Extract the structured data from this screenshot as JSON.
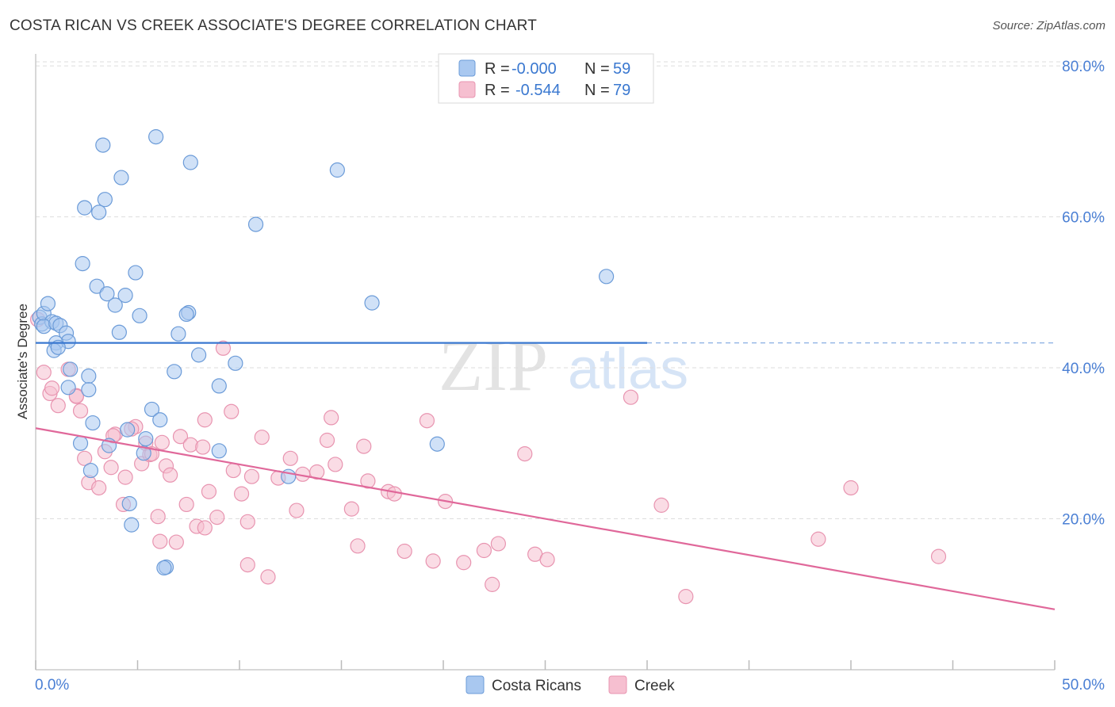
{
  "header": {
    "title": "COSTA RICAN VS CREEK ASSOCIATE'S DEGREE CORRELATION CHART",
    "source": "Source: ZipAtlas.com"
  },
  "watermark": {
    "zip": "ZIP",
    "atlas": "atlas"
  },
  "colors": {
    "blue_fill": "#a9c8f0",
    "blue_stroke": "#6b9bd8",
    "blue_line": "#3a78d0",
    "pink_fill": "#f6bfd0",
    "pink_stroke": "#e894b0",
    "pink_line": "#e0689a",
    "grid": "#dddddd",
    "value_text": "#3a78d0",
    "label_text": "#333333"
  },
  "stats": [
    {
      "r_label": "R =",
      "r_value": "-0.000",
      "n_label": "N =",
      "n_value": "59"
    },
    {
      "r_label": "R =",
      "r_value": "-0.544",
      "n_label": "N =",
      "n_value": "79"
    }
  ],
  "chart_data": {
    "type": "scatter",
    "title": "COSTA RICAN VS CREEK ASSOCIATE'S DEGREE CORRELATION CHART",
    "xlabel": "",
    "ylabel": "Associate's Degree",
    "xlim": [
      0,
      50
    ],
    "ylim": [
      0,
      84
    ],
    "x_tick_labels": [
      "0.0%",
      "50.0%"
    ],
    "y_ticks": [
      20,
      40,
      60,
      80
    ],
    "y_tick_labels": [
      "20.0%",
      "40.0%",
      "60.0%",
      "80.0%"
    ],
    "legend": [
      "Costa Ricans",
      "Creek"
    ],
    "series": [
      {
        "name": "Costa Ricans",
        "r": -0.0,
        "n": 59,
        "trend": {
          "x0": 0,
          "y0": 43.3,
          "x1": 30,
          "y1": 43.3,
          "dashed_to": 50
        },
        "points": [
          [
            0.2,
            46.7
          ],
          [
            0.3,
            45.8
          ],
          [
            0.4,
            47.2
          ],
          [
            0.6,
            48.5
          ],
          [
            0.8,
            46.1
          ],
          [
            0.4,
            45.5
          ],
          [
            1.0,
            45.9
          ],
          [
            1.2,
            45.6
          ],
          [
            1.5,
            44.6
          ],
          [
            1.6,
            43.5
          ],
          [
            1.0,
            43.3
          ],
          [
            0.9,
            42.3
          ],
          [
            1.1,
            42.7
          ],
          [
            1.7,
            39.8
          ],
          [
            2.6,
            38.9
          ],
          [
            1.6,
            37.4
          ],
          [
            2.6,
            37.1
          ],
          [
            2.2,
            30.0
          ],
          [
            2.8,
            32.7
          ],
          [
            2.7,
            26.4
          ],
          [
            3.6,
            29.7
          ],
          [
            4.5,
            31.8
          ],
          [
            5.4,
            30.6
          ],
          [
            5.3,
            28.7
          ],
          [
            5.7,
            34.5
          ],
          [
            6.1,
            33.1
          ],
          [
            4.6,
            22.0
          ],
          [
            4.7,
            19.2
          ],
          [
            6.4,
            13.6
          ],
          [
            6.3,
            13.5
          ],
          [
            2.3,
            53.8
          ],
          [
            3.0,
            50.8
          ],
          [
            3.5,
            49.8
          ],
          [
            3.9,
            48.3
          ],
          [
            4.4,
            49.6
          ],
          [
            4.9,
            52.6
          ],
          [
            5.1,
            46.9
          ],
          [
            4.1,
            44.7
          ],
          [
            7.0,
            44.5
          ],
          [
            8.0,
            41.7
          ],
          [
            6.8,
            39.5
          ],
          [
            7.5,
            47.3
          ],
          [
            7.4,
            47.1
          ],
          [
            9.0,
            37.6
          ],
          [
            9.8,
            40.6
          ],
          [
            9.0,
            29.0
          ],
          [
            12.4,
            25.6
          ],
          [
            10.8,
            59.0
          ],
          [
            3.3,
            69.5
          ],
          [
            5.9,
            70.6
          ],
          [
            7.6,
            67.2
          ],
          [
            4.2,
            65.2
          ],
          [
            3.4,
            62.3
          ],
          [
            2.4,
            61.2
          ],
          [
            3.1,
            60.6
          ],
          [
            14.8,
            66.2
          ],
          [
            16.5,
            48.6
          ],
          [
            19.7,
            29.9
          ],
          [
            28.0,
            52.1
          ]
        ]
      },
      {
        "name": "Creek",
        "r": -0.544,
        "n": 79,
        "trend": {
          "x0": 0,
          "y0": 32.0,
          "x1": 50,
          "y1": 8.0
        },
        "points": [
          [
            0.1,
            46.4
          ],
          [
            0.4,
            39.4
          ],
          [
            0.7,
            36.6
          ],
          [
            0.8,
            37.3
          ],
          [
            1.1,
            35.0
          ],
          [
            1.6,
            39.8
          ],
          [
            2.0,
            36.3
          ],
          [
            2.2,
            34.3
          ],
          [
            2.4,
            28.0
          ],
          [
            2.6,
            24.8
          ],
          [
            3.1,
            24.1
          ],
          [
            3.4,
            28.9
          ],
          [
            3.7,
            26.8
          ],
          [
            3.9,
            31.2
          ],
          [
            4.3,
            21.9
          ],
          [
            4.4,
            25.5
          ],
          [
            4.9,
            32.2
          ],
          [
            4.7,
            31.9
          ],
          [
            5.4,
            30.0
          ],
          [
            5.2,
            27.3
          ],
          [
            5.6,
            28.5
          ],
          [
            6.2,
            30.1
          ],
          [
            6.4,
            27.0
          ],
          [
            6.6,
            25.8
          ],
          [
            6.0,
            20.3
          ],
          [
            6.1,
            17.0
          ],
          [
            6.9,
            16.9
          ],
          [
            7.4,
            21.9
          ],
          [
            7.1,
            30.9
          ],
          [
            7.6,
            29.8
          ],
          [
            8.2,
            29.5
          ],
          [
            7.9,
            19.0
          ],
          [
            8.3,
            18.8
          ],
          [
            8.5,
            23.6
          ],
          [
            8.9,
            20.2
          ],
          [
            9.2,
            42.6
          ],
          [
            9.6,
            34.2
          ],
          [
            9.7,
            26.4
          ],
          [
            10.1,
            23.3
          ],
          [
            10.4,
            19.6
          ],
          [
            10.4,
            13.9
          ],
          [
            10.6,
            25.6
          ],
          [
            11.1,
            30.8
          ],
          [
            11.4,
            12.3
          ],
          [
            11.9,
            25.4
          ],
          [
            12.5,
            28.0
          ],
          [
            12.8,
            21.1
          ],
          [
            13.1,
            25.9
          ],
          [
            13.8,
            26.2
          ],
          [
            14.3,
            30.4
          ],
          [
            14.5,
            33.4
          ],
          [
            14.7,
            27.2
          ],
          [
            15.5,
            21.3
          ],
          [
            15.8,
            16.4
          ],
          [
            16.1,
            29.6
          ],
          [
            16.3,
            25.0
          ],
          [
            17.3,
            23.6
          ],
          [
            17.6,
            23.3
          ],
          [
            18.1,
            15.7
          ],
          [
            19.2,
            33.0
          ],
          [
            19.5,
            14.4
          ],
          [
            20.1,
            22.3
          ],
          [
            21.0,
            14.2
          ],
          [
            22.0,
            15.8
          ],
          [
            22.4,
            11.3
          ],
          [
            22.7,
            16.7
          ],
          [
            24.0,
            28.6
          ],
          [
            24.5,
            15.3
          ],
          [
            25.1,
            14.6
          ],
          [
            29.2,
            36.1
          ],
          [
            30.7,
            21.8
          ],
          [
            31.9,
            9.7
          ],
          [
            38.4,
            17.3
          ],
          [
            40.0,
            24.1
          ],
          [
            44.3,
            15.0
          ],
          [
            2.0,
            36.2
          ],
          [
            5.7,
            28.6
          ],
          [
            3.8,
            31.0
          ],
          [
            8.3,
            33.1
          ]
        ]
      }
    ]
  },
  "legend_bottom": [
    {
      "label": "Costa Ricans"
    },
    {
      "label": "Creek"
    }
  ]
}
